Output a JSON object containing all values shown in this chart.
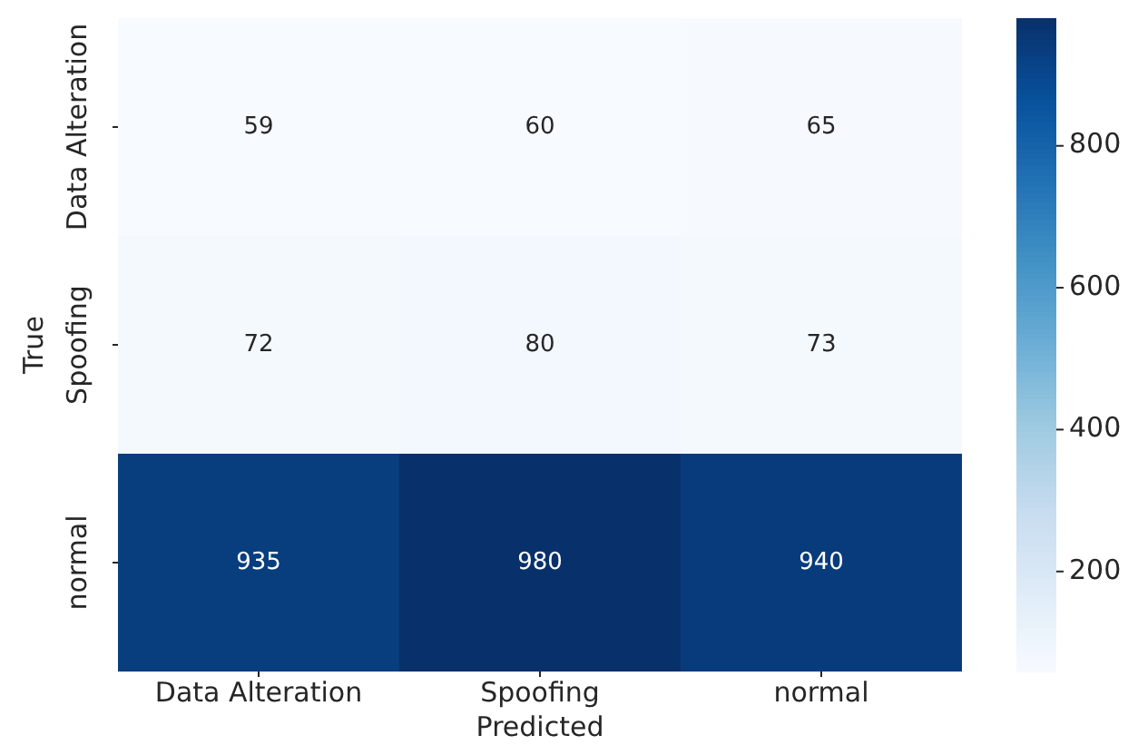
{
  "chart_data": {
    "type": "heatmap",
    "xlabel": "Predicted",
    "ylabel": "True",
    "categories": [
      "Data Alteration",
      "Spoofing",
      "normal"
    ],
    "y_categories": [
      "Data Alteration",
      "Spoofing",
      "normal"
    ],
    "cells": [
      [
        59,
        60,
        65
      ],
      [
        72,
        80,
        73
      ],
      [
        935,
        980,
        940
      ]
    ],
    "data_labels": true,
    "clim": [
      59,
      980
    ],
    "cticks": [
      200,
      400,
      600,
      800
    ]
  }
}
